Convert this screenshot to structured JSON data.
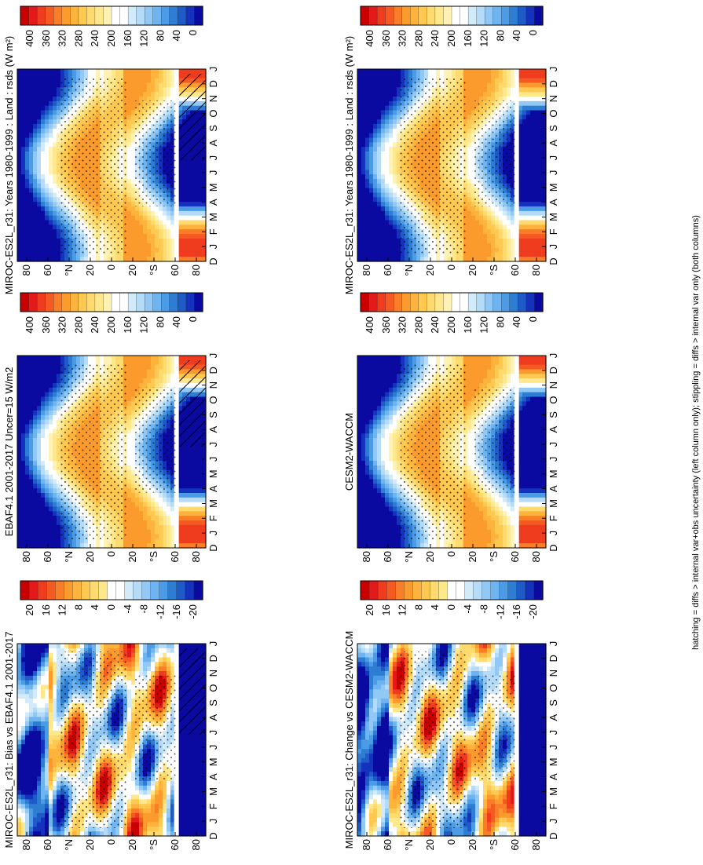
{
  "figure": {
    "footer": "hatching = diffs > internal var+obs uncertainty (left column only); stippling = diffs > internal var only (both columns)"
  },
  "colorbars": {
    "absolute": {
      "labels": [
        "400",
        "360",
        "320",
        "280",
        "240",
        "200",
        "160",
        "120",
        "80",
        "40",
        "0"
      ],
      "colors": [
        "#c80000",
        "#e41a1a",
        "#f03c1e",
        "#f55a23",
        "#fa7d28",
        "#fc9b2d",
        "#feb43c",
        "#ffc850",
        "#ffda6e",
        "#ffe88c",
        "#fff2b4",
        "#ffffff",
        "#ffffff",
        "#d2ebfa",
        "#b4dcf8",
        "#91c8f5",
        "#6eb4f0",
        "#4b9be6",
        "#2d7dd2",
        "#1e5ac8",
        "#1432be",
        "#0a0aa0"
      ]
    },
    "difference": {
      "labels": [
        "20",
        "16",
        "12",
        "8",
        "4",
        "0",
        "-4",
        "-8",
        "-12",
        "-16",
        "-20"
      ],
      "colors": [
        "#c80000",
        "#e41a1a",
        "#f03c1e",
        "#f55a23",
        "#fa7d28",
        "#fc9b2d",
        "#feb43c",
        "#ffc850",
        "#ffda6e",
        "#ffe88c",
        "#ffffff",
        "#ffffff",
        "#d2ebfa",
        "#b4dcf8",
        "#91c8f5",
        "#6eb4f0",
        "#4b9be6",
        "#2d7dd2",
        "#1e5ac8",
        "#1432be",
        "#0a0aa0"
      ]
    }
  },
  "chart_data": [
    {
      "type": "heatmap",
      "panel": "top-left",
      "title": "MIROC-ES2L_r31: Years 1980-1999 : Land : rsds (W m²)",
      "x_ticks": [
        "D",
        "J",
        "F",
        "M",
        "A",
        "M",
        "J",
        "J",
        "A",
        "S",
        "O",
        "N",
        "D",
        "J"
      ],
      "y_ticks": [
        "80",
        "60",
        "°N",
        "20",
        "0",
        "20",
        "°S",
        "60",
        "80"
      ],
      "ylim": [
        -90,
        90
      ],
      "field": "absolute",
      "colorbar": "absolute",
      "masked_band_lat": -62,
      "hatching": true
    },
    {
      "type": "heatmap",
      "panel": "top-right",
      "title": "MIROC-ES2L_r31: Years 1980-1999 : Land : rsds (W m²)",
      "x_ticks": [
        "D",
        "J",
        "F",
        "M",
        "A",
        "M",
        "J",
        "J",
        "A",
        "S",
        "O",
        "N",
        "D",
        "J"
      ],
      "y_ticks": [
        "80",
        "60",
        "°N",
        "20",
        "0",
        "20",
        "°S",
        "60",
        "80"
      ],
      "ylim": [
        -90,
        90
      ],
      "field": "absolute",
      "colorbar": "absolute",
      "masked_band_lat": -62,
      "hatching": false
    },
    {
      "type": "heatmap",
      "panel": "middle-left",
      "title": "EBAF4.1 2001-2017 Uncer=15 W/m2",
      "x_ticks": [
        "D",
        "J",
        "F",
        "M",
        "A",
        "M",
        "J",
        "J",
        "A",
        "S",
        "O",
        "N",
        "D",
        "J"
      ],
      "y_ticks": [
        "80",
        "60",
        "°N",
        "20",
        "0",
        "20",
        "°S",
        "60",
        "80"
      ],
      "ylim": [
        -90,
        90
      ],
      "field": "absolute",
      "colorbar": "absolute",
      "masked_band_lat": -62,
      "hatching": true
    },
    {
      "type": "heatmap",
      "panel": "middle-right",
      "title": "CESM2-WACCM",
      "x_ticks": [
        "D",
        "J",
        "F",
        "M",
        "A",
        "M",
        "J",
        "J",
        "A",
        "S",
        "O",
        "N",
        "D",
        "J"
      ],
      "y_ticks": [
        "80",
        "60",
        "°N",
        "20",
        "0",
        "20",
        "°S",
        "60",
        "80"
      ],
      "ylim": [
        -90,
        90
      ],
      "field": "absolute",
      "colorbar": "absolute",
      "masked_band_lat": -62,
      "hatching": false
    },
    {
      "type": "heatmap",
      "panel": "bottom-left",
      "title": "MIROC-ES2L_r31: Bias vs EBAF4.1 2001-2017",
      "x_ticks": [
        "D",
        "J",
        "F",
        "M",
        "A",
        "M",
        "J",
        "J",
        "A",
        "S",
        "O",
        "N",
        "D",
        "J"
      ],
      "y_ticks": [
        "80",
        "60",
        "°N",
        "20",
        "0",
        "20",
        "°S",
        "60",
        "80"
      ],
      "ylim": [
        -90,
        90
      ],
      "field": "bias",
      "colorbar": "difference",
      "masked_band_lat": -62,
      "hatching": true
    },
    {
      "type": "heatmap",
      "panel": "bottom-right",
      "title": "MIROC-ES2L_r31: Change vs CESM2-WACCM",
      "x_ticks": [
        "D",
        "J",
        "F",
        "M",
        "A",
        "M",
        "J",
        "J",
        "A",
        "S",
        "O",
        "N",
        "D",
        "J"
      ],
      "y_ticks": [
        "80",
        "60",
        "°N",
        "20",
        "0",
        "20",
        "°S",
        "60",
        "80"
      ],
      "ylim": [
        -90,
        90
      ],
      "field": "change",
      "colorbar": "difference",
      "masked_band_lat": -62,
      "hatching": false
    }
  ]
}
